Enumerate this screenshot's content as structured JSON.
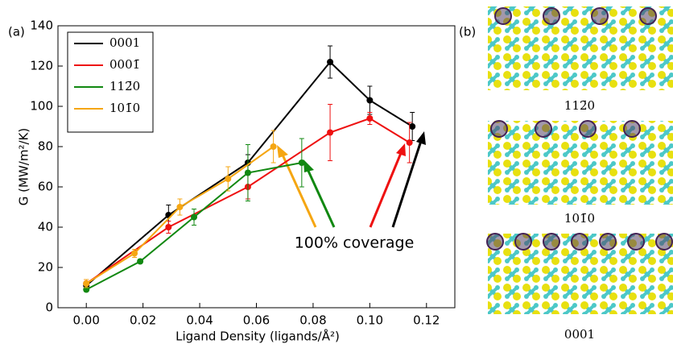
{
  "chart_data": {
    "type": "line",
    "panel_label": "(a)",
    "xlabel": "Ligand Density (ligands/Å²)",
    "ylabel": "G (MW/m²/K)",
    "xlim": [
      -0.01,
      0.13
    ],
    "ylim": [
      0,
      140
    ],
    "xticks": [
      {
        "value": 0,
        "label": "0.00"
      },
      0.02,
      0.04,
      0.06,
      0.08,
      {
        "value": 0.1,
        "label": "0.10"
      },
      0.12
    ],
    "yticks": [
      0,
      20,
      40,
      60,
      80,
      100,
      120,
      140
    ],
    "legend": "upper left",
    "series": [
      {
        "name": "0001",
        "color": "#000000",
        "x": [
          0,
          0.029,
          0.057,
          0.086,
          0.1,
          0.115
        ],
        "values": [
          11,
          46,
          72,
          122,
          103,
          90
        ],
        "errors": [
          2,
          5,
          4,
          8,
          7,
          7
        ]
      },
      {
        "name": "0001̄",
        "color": "#ee1111",
        "x": [
          0,
          0.029,
          0.057,
          0.086,
          0.1,
          0.114
        ],
        "values": [
          12,
          40,
          60,
          87,
          94,
          82
        ],
        "errors": [
          2,
          3,
          6,
          14,
          3,
          10
        ]
      },
      {
        "name": "112̄0",
        "color": "#118811",
        "x": [
          0,
          0.019,
          0.038,
          0.057,
          0.076
        ],
        "values": [
          9,
          23,
          45,
          67,
          72
        ],
        "errors": [
          1,
          1,
          4,
          14,
          12
        ]
      },
      {
        "name": "101̄0",
        "color": "#f5a612",
        "x": [
          0,
          0.017,
          0.033,
          0.05,
          0.066
        ],
        "values": [
          12,
          27,
          50,
          64,
          80
        ],
        "errors": [
          2,
          2,
          4,
          6,
          8
        ]
      }
    ],
    "annotation": "100% coverage"
  },
  "panel_b": {
    "label": "(b)",
    "structures": [
      "112̄0",
      "101̄0",
      "0001"
    ]
  }
}
